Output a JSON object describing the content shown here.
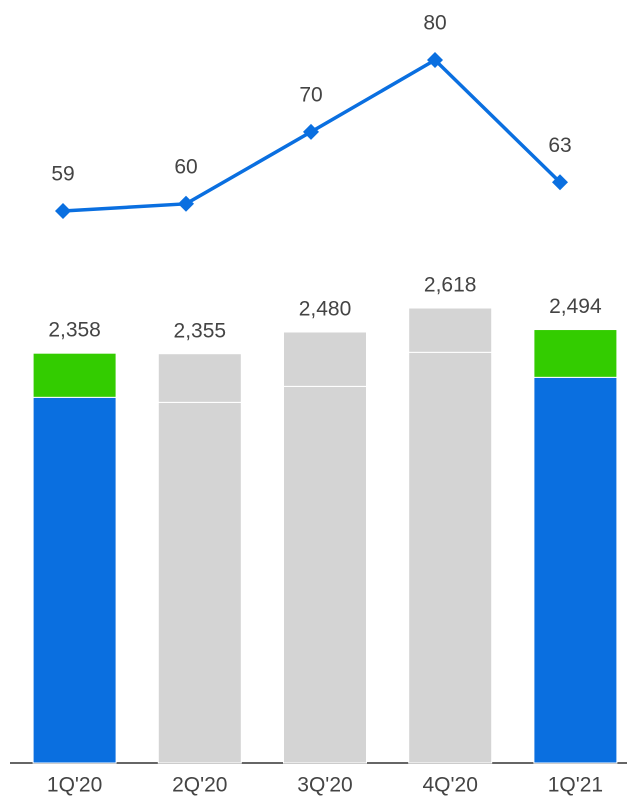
{
  "chart_data": {
    "type": "bar",
    "categories": [
      "1Q'20",
      "2Q'20",
      "3Q'20",
      "4Q'20",
      "1Q'21"
    ],
    "series": [
      {
        "colors": [
          "#0a6fe0",
          "#d4d4d4",
          "#d4d4d4",
          "#d4d4d4",
          "#0a6fe0"
        ],
        "values": [
          2104,
          2075,
          2167,
          2363,
          2219
        ]
      },
      {
        "colors": [
          "#33cc00",
          "#d4d4d4",
          "#d4d4d4",
          "#d4d4d4",
          "#33cc00"
        ],
        "values": [
          254,
          280,
          313,
          255,
          275
        ]
      }
    ],
    "totals": [
      2358,
      2355,
      2480,
      2618,
      2494
    ],
    "total_labels": [
      "2,358",
      "2,355",
      "2,480",
      "2,618",
      "2,494"
    ],
    "line": {
      "type": "line",
      "color": "#0a6fe0",
      "values": [
        59,
        60,
        70,
        80,
        63
      ]
    }
  }
}
